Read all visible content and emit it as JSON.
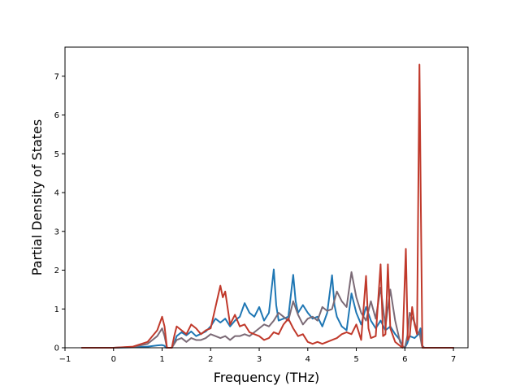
{
  "chart_data": {
    "type": "line",
    "xlabel": "Frequency (THz)",
    "ylabel": "Partial Density of States",
    "xlim": [
      -1,
      7.3
    ],
    "ylim": [
      0,
      7.75
    ],
    "xticks": [
      -1,
      0,
      1,
      2,
      3,
      4,
      5,
      6,
      7
    ],
    "yticks": [
      0,
      1,
      2,
      3,
      4,
      5,
      6,
      7
    ],
    "grid": false,
    "legend": "none",
    "series": [
      {
        "color": "#1f77b4",
        "points": [
          [
            -0.65,
            0
          ],
          [
            0,
            0
          ],
          [
            0.4,
            0.01
          ],
          [
            0.7,
            0.03
          ],
          [
            0.9,
            0.06
          ],
          [
            1.0,
            0.07
          ],
          [
            1.05,
            0.05
          ],
          [
            1.08,
            0
          ],
          [
            1.2,
            0
          ],
          [
            1.25,
            0.12
          ],
          [
            1.3,
            0.3
          ],
          [
            1.4,
            0.4
          ],
          [
            1.5,
            0.32
          ],
          [
            1.6,
            0.42
          ],
          [
            1.7,
            0.3
          ],
          [
            1.8,
            0.36
          ],
          [
            1.9,
            0.42
          ],
          [
            2.0,
            0.55
          ],
          [
            2.1,
            0.75
          ],
          [
            2.2,
            0.65
          ],
          [
            2.3,
            0.75
          ],
          [
            2.4,
            0.55
          ],
          [
            2.5,
            0.7
          ],
          [
            2.6,
            0.8
          ],
          [
            2.7,
            1.15
          ],
          [
            2.8,
            0.9
          ],
          [
            2.9,
            0.8
          ],
          [
            3.0,
            1.05
          ],
          [
            3.1,
            0.7
          ],
          [
            3.2,
            0.9
          ],
          [
            3.3,
            2.02
          ],
          [
            3.35,
            1.1
          ],
          [
            3.4,
            0.7
          ],
          [
            3.5,
            0.75
          ],
          [
            3.6,
            0.8
          ],
          [
            3.7,
            1.88
          ],
          [
            3.75,
            1.2
          ],
          [
            3.8,
            0.9
          ],
          [
            3.9,
            1.1
          ],
          [
            4.0,
            0.9
          ],
          [
            4.1,
            0.75
          ],
          [
            4.2,
            0.8
          ],
          [
            4.3,
            0.55
          ],
          [
            4.4,
            0.9
          ],
          [
            4.5,
            1.87
          ],
          [
            4.55,
            1.1
          ],
          [
            4.6,
            0.8
          ],
          [
            4.7,
            0.55
          ],
          [
            4.8,
            0.45
          ],
          [
            4.9,
            1.4
          ],
          [
            5.0,
            0.9
          ],
          [
            5.1,
            0.6
          ],
          [
            5.2,
            1.05
          ],
          [
            5.3,
            0.7
          ],
          [
            5.4,
            0.5
          ],
          [
            5.5,
            0.7
          ],
          [
            5.6,
            0.45
          ],
          [
            5.7,
            0.55
          ],
          [
            5.8,
            0.35
          ],
          [
            5.9,
            0.2
          ],
          [
            5.95,
            0.02
          ],
          [
            6.0,
            0
          ],
          [
            6.05,
            0.12
          ],
          [
            6.1,
            0.3
          ],
          [
            6.2,
            0.25
          ],
          [
            6.28,
            0.35
          ],
          [
            6.32,
            0.5
          ],
          [
            6.36,
            0.05
          ],
          [
            6.4,
            0
          ],
          [
            7.0,
            0
          ]
        ]
      },
      {
        "color": "#7b6a76",
        "points": [
          [
            -0.65,
            0
          ],
          [
            0,
            0
          ],
          [
            0.4,
            0.02
          ],
          [
            0.7,
            0.1
          ],
          [
            0.9,
            0.3
          ],
          [
            1.0,
            0.5
          ],
          [
            1.05,
            0.3
          ],
          [
            1.1,
            0
          ],
          [
            1.2,
            0
          ],
          [
            1.25,
            0.1
          ],
          [
            1.3,
            0.2
          ],
          [
            1.4,
            0.25
          ],
          [
            1.5,
            0.15
          ],
          [
            1.6,
            0.25
          ],
          [
            1.7,
            0.2
          ],
          [
            1.8,
            0.2
          ],
          [
            1.9,
            0.25
          ],
          [
            2.0,
            0.35
          ],
          [
            2.1,
            0.3
          ],
          [
            2.2,
            0.25
          ],
          [
            2.3,
            0.3
          ],
          [
            2.4,
            0.2
          ],
          [
            2.5,
            0.3
          ],
          [
            2.6,
            0.3
          ],
          [
            2.7,
            0.35
          ],
          [
            2.8,
            0.3
          ],
          [
            2.9,
            0.4
          ],
          [
            3.0,
            0.5
          ],
          [
            3.1,
            0.6
          ],
          [
            3.2,
            0.55
          ],
          [
            3.3,
            0.7
          ],
          [
            3.4,
            0.9
          ],
          [
            3.5,
            0.8
          ],
          [
            3.6,
            0.7
          ],
          [
            3.7,
            1.2
          ],
          [
            3.8,
            0.85
          ],
          [
            3.9,
            0.6
          ],
          [
            4.0,
            0.75
          ],
          [
            4.1,
            0.8
          ],
          [
            4.2,
            0.7
          ],
          [
            4.3,
            1.05
          ],
          [
            4.4,
            0.95
          ],
          [
            4.5,
            1.0
          ],
          [
            4.6,
            1.45
          ],
          [
            4.7,
            1.2
          ],
          [
            4.8,
            1.05
          ],
          [
            4.9,
            1.95
          ],
          [
            5.0,
            1.3
          ],
          [
            5.1,
            0.9
          ],
          [
            5.2,
            0.7
          ],
          [
            5.3,
            1.2
          ],
          [
            5.4,
            0.75
          ],
          [
            5.5,
            1.55
          ],
          [
            5.6,
            0.55
          ],
          [
            5.7,
            1.5
          ],
          [
            5.8,
            0.7
          ],
          [
            5.9,
            0.15
          ],
          [
            5.95,
            0.05
          ],
          [
            6.0,
            0
          ],
          [
            6.05,
            0.3
          ],
          [
            6.1,
            0.9
          ],
          [
            6.2,
            0.65
          ],
          [
            6.25,
            0.4
          ],
          [
            6.3,
            0.4
          ],
          [
            6.35,
            0.05
          ],
          [
            6.4,
            0
          ],
          [
            7.0,
            0
          ]
        ]
      },
      {
        "color": "#c0392b",
        "points": [
          [
            -0.65,
            0
          ],
          [
            0,
            0
          ],
          [
            0.4,
            0.03
          ],
          [
            0.7,
            0.15
          ],
          [
            0.9,
            0.45
          ],
          [
            1.0,
            0.8
          ],
          [
            1.05,
            0.55
          ],
          [
            1.1,
            0
          ],
          [
            1.2,
            0
          ],
          [
            1.25,
            0.3
          ],
          [
            1.3,
            0.55
          ],
          [
            1.4,
            0.45
          ],
          [
            1.5,
            0.35
          ],
          [
            1.6,
            0.6
          ],
          [
            1.7,
            0.5
          ],
          [
            1.8,
            0.35
          ],
          [
            1.9,
            0.45
          ],
          [
            2.0,
            0.5
          ],
          [
            2.1,
            1.05
          ],
          [
            2.2,
            1.6
          ],
          [
            2.25,
            1.3
          ],
          [
            2.3,
            1.45
          ],
          [
            2.4,
            0.6
          ],
          [
            2.5,
            0.85
          ],
          [
            2.6,
            0.55
          ],
          [
            2.7,
            0.6
          ],
          [
            2.8,
            0.4
          ],
          [
            2.9,
            0.35
          ],
          [
            3.0,
            0.3
          ],
          [
            3.1,
            0.2
          ],
          [
            3.2,
            0.25
          ],
          [
            3.3,
            0.4
          ],
          [
            3.4,
            0.35
          ],
          [
            3.5,
            0.6
          ],
          [
            3.6,
            0.75
          ],
          [
            3.7,
            0.5
          ],
          [
            3.8,
            0.3
          ],
          [
            3.9,
            0.35
          ],
          [
            4.0,
            0.15
          ],
          [
            4.1,
            0.1
          ],
          [
            4.2,
            0.15
          ],
          [
            4.3,
            0.1
          ],
          [
            4.4,
            0.15
          ],
          [
            4.5,
            0.2
          ],
          [
            4.6,
            0.25
          ],
          [
            4.7,
            0.35
          ],
          [
            4.8,
            0.4
          ],
          [
            4.9,
            0.35
          ],
          [
            5.0,
            0.6
          ],
          [
            5.1,
            0.2
          ],
          [
            5.2,
            1.85
          ],
          [
            5.25,
            0.5
          ],
          [
            5.3,
            0.25
          ],
          [
            5.4,
            0.3
          ],
          [
            5.5,
            2.15
          ],
          [
            5.55,
            0.3
          ],
          [
            5.6,
            0.35
          ],
          [
            5.65,
            2.15
          ],
          [
            5.7,
            0.5
          ],
          [
            5.8,
            0.15
          ],
          [
            5.9,
            0.05
          ],
          [
            5.95,
            0
          ],
          [
            6.02,
            2.55
          ],
          [
            6.06,
            0.2
          ],
          [
            6.1,
            0.3
          ],
          [
            6.15,
            1.05
          ],
          [
            6.2,
            0.6
          ],
          [
            6.25,
            0.35
          ],
          [
            6.3,
            7.3
          ],
          [
            6.33,
            3.5
          ],
          [
            6.36,
            0
          ],
          [
            7.0,
            0
          ]
        ]
      }
    ]
  }
}
